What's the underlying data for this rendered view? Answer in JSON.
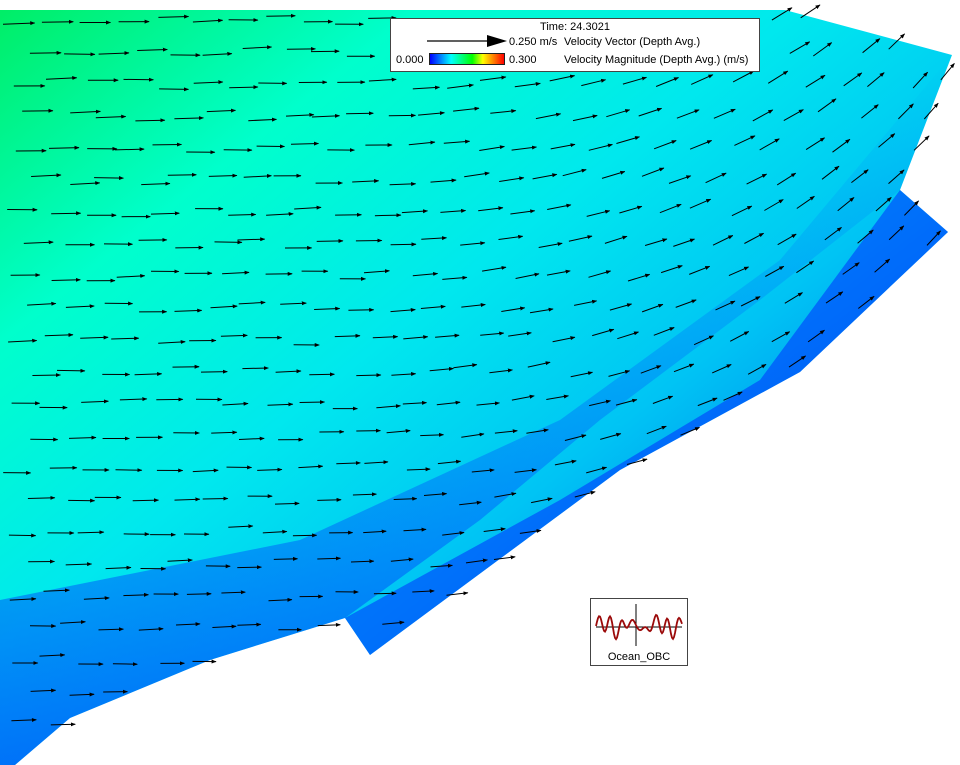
{
  "legend": {
    "time_label": "Time: 24.3021",
    "vector_value": "0.250 m/s",
    "vector_label": "Velocity Vector (Depth Avg.)",
    "magnitude_min": "0.000",
    "magnitude_max": "0.300",
    "magnitude_label": "Velocity Magnitude (Depth Avg.) (m/s)",
    "colormap": [
      "#0000ff",
      "#0080ff",
      "#00ffff",
      "#00ff80",
      "#00ff00",
      "#ffff00",
      "#ff8000",
      "#ff0000"
    ]
  },
  "boundary": {
    "label": "Ocean_OBC"
  },
  "colors": {
    "arrow": "#000000",
    "obc_series": "#9b0a0a",
    "legend_border": "#444444"
  }
}
